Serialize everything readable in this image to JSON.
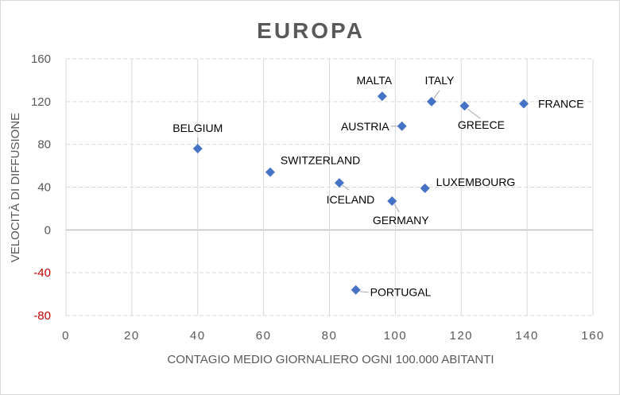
{
  "chart_data": {
    "type": "scatter",
    "title": "EUROPA",
    "xlabel": "CONTAGIO MEDIO GIORNALIERO OGNI 100.000 ABITANTI",
    "ylabel": "VELOCITÀ DI DIFFUSIONE",
    "xlim": [
      0,
      160
    ],
    "ylim": [
      -80,
      160
    ],
    "x_ticks": [
      0,
      20,
      40,
      60,
      80,
      100,
      120,
      140,
      160
    ],
    "y_ticks": [
      -80,
      -40,
      0,
      40,
      80,
      120,
      160
    ],
    "grid": true,
    "marker_color": "#4472c4",
    "negative_tick_color": "#c00000",
    "points": [
      {
        "label": "BELGIUM",
        "x": 40,
        "y": 76
      },
      {
        "label": "SWITZERLAND",
        "x": 62,
        "y": 54
      },
      {
        "label": "ICELAND",
        "x": 83,
        "y": 44
      },
      {
        "label": "PORTUGAL",
        "x": 88,
        "y": -56
      },
      {
        "label": "MALTA",
        "x": 96,
        "y": 125
      },
      {
        "label": "GERMANY",
        "x": 99,
        "y": 27
      },
      {
        "label": "AUSTRIA",
        "x": 102,
        "y": 97
      },
      {
        "label": "LUXEMBOURG",
        "x": 109,
        "y": 39
      },
      {
        "label": "ITALY",
        "x": 111,
        "y": 120
      },
      {
        "label": "GREECE",
        "x": 121,
        "y": 116
      },
      {
        "label": "FRANCE",
        "x": 139,
        "y": 118
      }
    ]
  }
}
